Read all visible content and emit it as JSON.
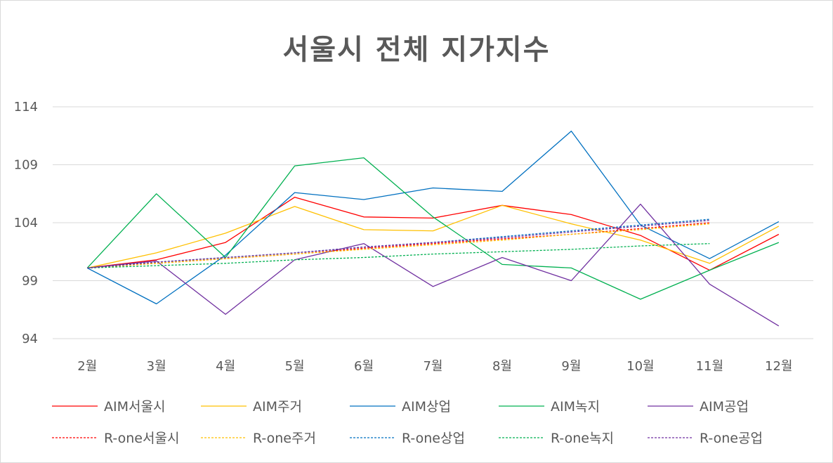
{
  "chart_data": {
    "type": "line",
    "title": "서울시 전체 지가지수",
    "categories": [
      "2월",
      "3월",
      "4월",
      "5월",
      "6월",
      "7월",
      "8월",
      "9월",
      "10월",
      "11월",
      "12월"
    ],
    "ylim": [
      94,
      114
    ],
    "yticks": [
      94,
      99,
      104,
      109,
      114
    ],
    "grid": true,
    "legend_position": "bottom",
    "series": [
      {
        "name": "AIM서울시",
        "color": "#ff0000",
        "dashed": false,
        "values": [
          100.1,
          100.8,
          102.3,
          106.2,
          104.5,
          104.4,
          105.5,
          104.7,
          102.9,
          99.9,
          103.0
        ]
      },
      {
        "name": "AIM주거",
        "color": "#ffc000",
        "dashed": false,
        "values": [
          100.1,
          101.4,
          103.1,
          105.4,
          103.4,
          103.3,
          105.5,
          103.9,
          102.5,
          100.5,
          103.7
        ]
      },
      {
        "name": "AIM상업",
        "color": "#0070c0",
        "dashed": false,
        "values": [
          100.1,
          97.0,
          101.2,
          106.6,
          106.0,
          107.0,
          106.7,
          111.9,
          103.8,
          100.9,
          104.1
        ]
      },
      {
        "name": "AIM녹지",
        "color": "#00b050",
        "dashed": false,
        "values": [
          100.1,
          106.5,
          101.0,
          108.9,
          109.6,
          104.5,
          100.4,
          100.1,
          97.4,
          99.9,
          102.3
        ]
      },
      {
        "name": "AIM공업",
        "color": "#7030a0",
        "dashed": false,
        "values": [
          100.1,
          100.7,
          96.1,
          100.8,
          102.2,
          98.5,
          101.0,
          99.0,
          105.6,
          98.7,
          95.1
        ]
      },
      {
        "name": "R-one서울시",
        "color": "#ff0000",
        "dashed": true,
        "values": [
          100.1,
          100.5,
          100.9,
          101.3,
          101.8,
          102.2,
          102.6,
          103.0,
          103.5,
          104.0,
          null
        ]
      },
      {
        "name": "R-one주거",
        "color": "#ffc000",
        "dashed": true,
        "values": [
          100.1,
          100.5,
          100.9,
          101.3,
          101.7,
          102.1,
          102.5,
          103.0,
          103.4,
          103.9,
          null
        ]
      },
      {
        "name": "R-one상업",
        "color": "#0070c0",
        "dashed": true,
        "values": [
          100.1,
          100.6,
          101.0,
          101.4,
          101.9,
          102.3,
          102.8,
          103.3,
          103.8,
          104.3,
          null
        ]
      },
      {
        "name": "R-one녹지",
        "color": "#00b050",
        "dashed": true,
        "values": [
          100.1,
          100.3,
          100.5,
          100.8,
          101.0,
          101.3,
          101.5,
          101.7,
          102.0,
          102.2,
          null
        ]
      },
      {
        "name": "R-one공업",
        "color": "#7030a0",
        "dashed": true,
        "values": [
          100.1,
          100.6,
          101.0,
          101.4,
          101.9,
          102.3,
          102.7,
          103.2,
          103.7,
          104.2,
          null
        ]
      }
    ]
  }
}
